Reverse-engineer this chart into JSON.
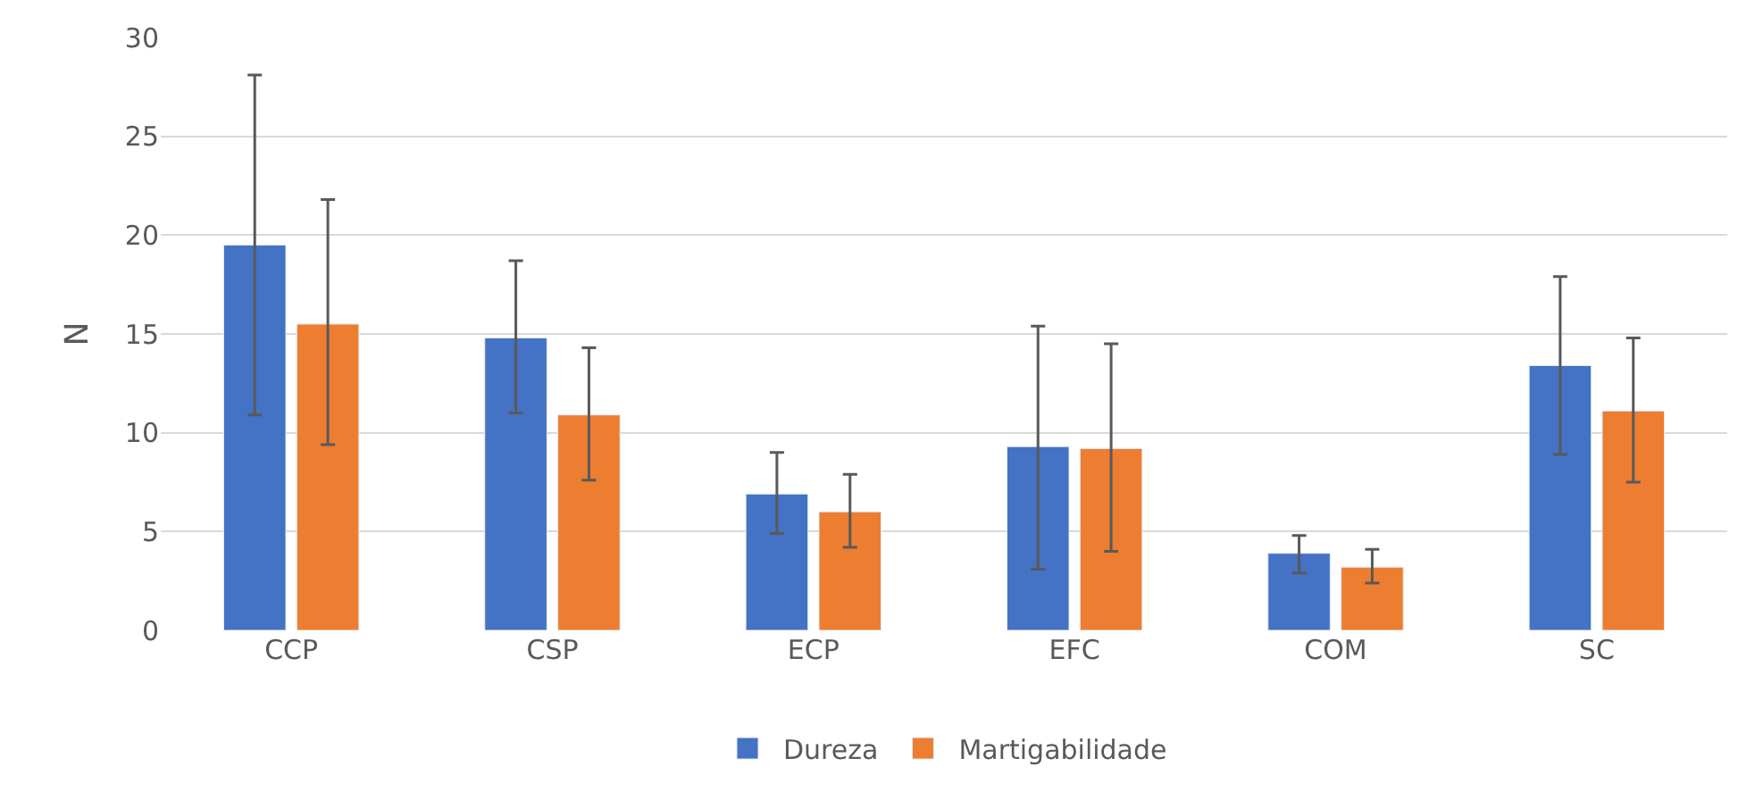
{
  "chart_data": {
    "type": "bar",
    "ylabel": "N",
    "categories": [
      "CCP",
      "CSP",
      "ECP",
      "EFC",
      "COM",
      "SC"
    ],
    "series": [
      {
        "name": "Dureza",
        "color": "#4472c4",
        "values": [
          19.5,
          14.8,
          6.9,
          9.3,
          3.9,
          13.4
        ],
        "errors": [
          [
            10.9,
            28.1
          ],
          [
            11.0,
            18.7
          ],
          [
            4.9,
            9.0
          ],
          [
            3.1,
            15.4
          ],
          [
            2.9,
            4.8
          ],
          [
            8.9,
            17.9
          ]
        ]
      },
      {
        "name": "Martigabilidade",
        "color": "#ed7d31",
        "values": [
          15.5,
          10.9,
          6.0,
          9.2,
          3.2,
          11.1
        ],
        "errors": [
          [
            9.4,
            21.8
          ],
          [
            7.6,
            14.3
          ],
          [
            4.2,
            7.9
          ],
          [
            4.0,
            14.5
          ],
          [
            2.4,
            4.1
          ],
          [
            7.5,
            14.8
          ]
        ]
      }
    ],
    "ylim": [
      0,
      30
    ],
    "yticks": [
      0,
      5,
      10,
      15,
      20,
      25,
      30
    ],
    "grid": "y",
    "legend": "bottom"
  }
}
